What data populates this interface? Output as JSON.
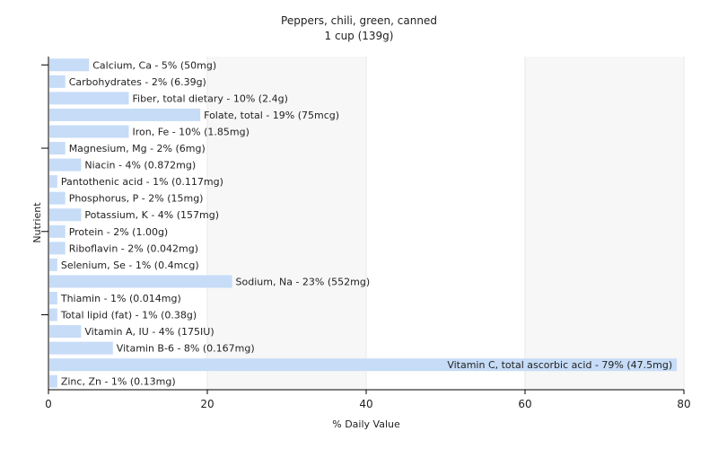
{
  "chart_data": {
    "type": "bar",
    "orientation": "horizontal",
    "title": "Peppers, chili, green, canned",
    "subtitle": "1 cup (139g)",
    "xlabel": "% Daily Value",
    "ylabel": "Nutrient",
    "xlim": [
      0,
      80
    ],
    "xticks": [
      0,
      20,
      40,
      60,
      80
    ],
    "grid": "vertical",
    "categories": [
      "Calcium, Ca",
      "Carbohydrates",
      "Fiber, total dietary",
      "Folate, total",
      "Iron, Fe",
      "Magnesium, Mg",
      "Niacin",
      "Pantothenic acid",
      "Phosphorus, P",
      "Potassium, K",
      "Protein",
      "Riboflavin",
      "Selenium, Se",
      "Sodium, Na",
      "Thiamin",
      "Total lipid (fat)",
      "Vitamin A, IU",
      "Vitamin B-6",
      "Vitamin C, total ascorbic acid",
      "Zinc, Zn"
    ],
    "values": [
      5,
      2,
      10,
      19,
      10,
      2,
      4,
      1,
      2,
      4,
      2,
      2,
      1,
      23,
      1,
      1,
      4,
      8,
      79,
      1
    ],
    "labels": [
      "Calcium, Ca - 5% (50mg)",
      "Carbohydrates - 2% (6.39g)",
      "Fiber, total dietary - 10% (2.4g)",
      "Folate, total - 19% (75mcg)",
      "Iron, Fe - 10% (1.85mg)",
      "Magnesium, Mg - 2% (6mg)",
      "Niacin - 4% (0.872mg)",
      "Pantothenic acid - 1% (0.117mg)",
      "Phosphorus, P - 2% (15mg)",
      "Potassium, K - 4% (157mg)",
      "Protein - 2% (1.00g)",
      "Riboflavin - 2% (0.042mg)",
      "Selenium, Se - 1% (0.4mcg)",
      "Sodium, Na - 23% (552mg)",
      "Thiamin - 1% (0.014mg)",
      "Total lipid (fat) - 1% (0.38g)",
      "Vitamin A, IU - 4% (175IU)",
      "Vitamin B-6 - 8% (0.167mg)",
      "Vitamin C, total ascorbic acid - 79% (47.5mg)",
      "Zinc, Zn - 1% (0.13mg)"
    ],
    "colors": {
      "bar": "#c6dcf7",
      "background_band": "#f7f7f7",
      "grid": "#ffffff",
      "axis": "#000000"
    }
  }
}
